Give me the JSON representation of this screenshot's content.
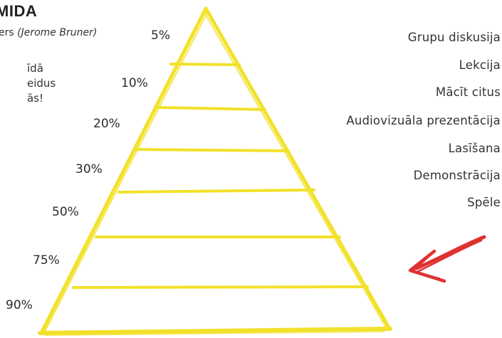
{
  "header": {
    "title": "MIDA",
    "subtitle_prefix": "ers ",
    "subtitle_author": "(Jerome Bruner)"
  },
  "intro_lines": [
    "īdā",
    "eidus",
    "ās!"
  ],
  "percentages": [
    "5%",
    "10%",
    "20%",
    "30%",
    "50%",
    "75%",
    "90%"
  ],
  "methods": [
    "Grupu diskusija",
    "Lekcija",
    "Mācīt citus",
    "Audiovizuāla prezentācija",
    "Lasīšana",
    "Demonstrācija",
    "Spēle"
  ],
  "colors": {
    "pyramid_stroke": "#f2e12a",
    "arrow": "#e03131",
    "text": "#2b2b2b"
  },
  "icons": {
    "pointer": "red-arrow-icon"
  }
}
